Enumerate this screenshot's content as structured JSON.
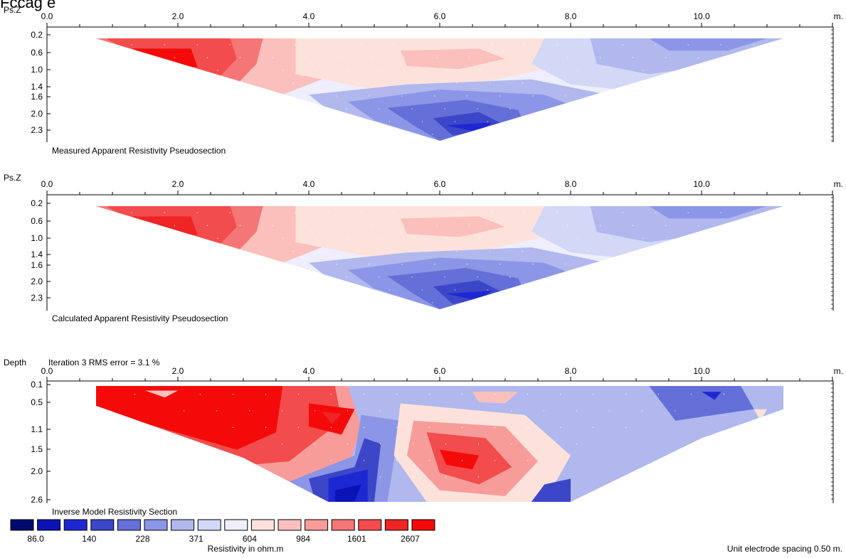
{
  "header_text": "Fccag e",
  "x_ticks": [
    "0.0",
    "2.0",
    "4.0",
    "6.0",
    "8.0",
    "10.0"
  ],
  "x_unit": "m.",
  "panels": [
    {
      "axis_label": "Ps.Z",
      "depth_ticks": [
        "0.2",
        "0.6",
        "1.0",
        "1.4",
        "1.6",
        "2.0",
        "2.3"
      ],
      "caption": "Measured Apparent Resistivity Pseudosection"
    },
    {
      "axis_label": "Ps.Z",
      "depth_ticks": [
        "0.2",
        "0.6",
        "1.0",
        "1.4",
        "1.6",
        "2.0",
        "2.3"
      ],
      "caption": "Calculated Apparent Resistivity Pseudosection"
    },
    {
      "axis_label": "Depth",
      "iteration_text": "Iteration 3 RMS error = 3.1 %",
      "depth_ticks": [
        "0.1",
        "0.5",
        "1.1",
        "1.5",
        "2.0",
        "2.6"
      ],
      "caption": "Inverse Model Resistivity Section"
    }
  ],
  "legend": {
    "colors": [
      "#000a6e",
      "#0a14b4",
      "#1e28d2",
      "#3c46c8",
      "#6470d8",
      "#8c96e6",
      "#b0b8ee",
      "#d2d8f6",
      "#eeeefc",
      "#fde2dc",
      "#fbc0bc",
      "#f89c9a",
      "#f57676",
      "#f24c4c",
      "#ef2424",
      "#f50a0a"
    ],
    "labels": [
      "86.0",
      "140",
      "228",
      "371",
      "604",
      "984",
      "1601",
      "2607"
    ],
    "unit_label": "Resistivity in ohm.m"
  },
  "footer_note": "Unit electrode spacing 0.50 m.",
  "chart_data": [
    {
      "type": "heatmap",
      "title": "Measured Apparent Resistivity Pseudosection",
      "xlabel": "m.",
      "ylabel": "Ps.Z",
      "x_ticks": [
        0.0,
        2.0,
        4.0,
        6.0,
        8.0,
        10.0
      ],
      "y_ticks": [
        0.2,
        0.6,
        1.0,
        1.4,
        1.6,
        2.0,
        2.3
      ],
      "xlim": [
        0.0,
        12.0
      ],
      "ylim": [
        0.2,
        2.3
      ],
      "section_shape": "inverted triangle from 0.75 m to 11.25 m, apex at 6.0 m",
      "description_regions": [
        {
          "x_range": [
            1.0,
            3.0
          ],
          "depth": [
            0.2,
            1.0
          ],
          "resistivity_class": "high (≈1600–2600+)"
        },
        {
          "x_range": [
            3.5,
            7.5
          ],
          "depth": [
            0.2,
            1.4
          ],
          "resistivity_class": "moderate (≈600–1000)"
        },
        {
          "x_range": [
            4.5,
            7.5
          ],
          "depth": [
            1.4,
            2.3
          ],
          "resistivity_class": "low (≈86–228)"
        },
        {
          "x_range": [
            7.5,
            11.2
          ],
          "depth": [
            0.2,
            1.0
          ],
          "resistivity_class": "low-moderate (≈228–604)"
        }
      ]
    },
    {
      "type": "heatmap",
      "title": "Calculated Apparent Resistivity Pseudosection",
      "xlabel": "m.",
      "ylabel": "Ps.Z",
      "x_ticks": [
        0.0,
        2.0,
        4.0,
        6.0,
        8.0,
        10.0
      ],
      "y_ticks": [
        0.2,
        0.6,
        1.0,
        1.4,
        1.6,
        2.0,
        2.3
      ],
      "xlim": [
        0.0,
        12.0
      ],
      "ylim": [
        0.2,
        2.3
      ],
      "section_shape": "inverted triangle from 0.75 m to 11.25 m, apex at 6.0 m"
    },
    {
      "type": "heatmap",
      "title": "Inverse Model Resistivity Section",
      "xlabel": "m.",
      "ylabel": "Depth",
      "annotation": "Iteration 3 RMS error = 3.1 %",
      "x_ticks": [
        0.0,
        2.0,
        4.0,
        6.0,
        8.0,
        10.0
      ],
      "y_ticks": [
        0.1,
        0.5,
        1.1,
        1.5,
        2.0,
        2.6
      ],
      "xlim": [
        0.0,
        12.0
      ],
      "ylim": [
        0.1,
        2.6
      ],
      "color_scale_values": [
        86.0,
        140,
        228,
        371,
        604,
        984,
        1601,
        2607
      ],
      "color_scale_unit": "Resistivity in ohm.m",
      "description_regions": [
        {
          "x_range": [
            0.75,
            3.5
          ],
          "depth": [
            0.1,
            1.5
          ],
          "resistivity_class": "very high (>2600)"
        },
        {
          "x_range": [
            4.0,
            4.6
          ],
          "depth": [
            0.3,
            0.8
          ],
          "resistivity_class": "very high"
        },
        {
          "x_range": [
            4.2,
            5.3
          ],
          "depth": [
            1.3,
            2.6
          ],
          "resistivity_class": "very low (≈86–140)"
        },
        {
          "x_range": [
            5.3,
            7.5
          ],
          "depth": [
            0.8,
            2.3
          ],
          "resistivity_class": "high (≈1600–2600)"
        },
        {
          "x_range": [
            8.0,
            11.2
          ],
          "depth": [
            0.1,
            2.6
          ],
          "resistivity_class": "low (≈140–371)"
        }
      ]
    }
  ]
}
